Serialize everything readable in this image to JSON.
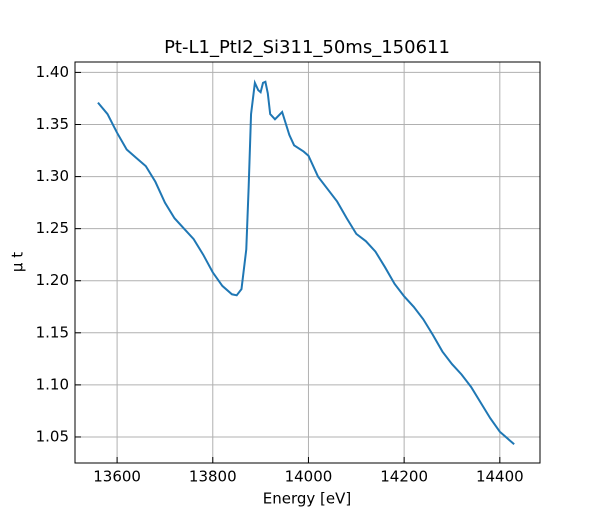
{
  "chart_data": {
    "type": "line",
    "title": "Pt-L1_PtI2_Si311_50ms_150611",
    "xlabel": "Energy [eV]",
    "ylabel": "μ t",
    "series": [
      {
        "color": "#1f77b4",
        "x": [
          13560,
          13580,
          13600,
          13620,
          13640,
          13660,
          13680,
          13700,
          13720,
          13740,
          13760,
          13780,
          13800,
          13820,
          13840,
          13850,
          13860,
          13870,
          13875,
          13880,
          13888,
          13895,
          13900,
          13905,
          13910,
          13915,
          13920,
          13930,
          13945,
          13960,
          13970,
          13990,
          14000,
          14020,
          14040,
          14060,
          14080,
          14100,
          14120,
          14140,
          14160,
          14180,
          14200,
          14220,
          14240,
          14260,
          14280,
          14300,
          14320,
          14340,
          14360,
          14380,
          14400,
          14420,
          14430
        ],
        "values": [
          1.371,
          1.36,
          1.342,
          1.326,
          1.318,
          1.31,
          1.295,
          1.275,
          1.26,
          1.25,
          1.24,
          1.225,
          1.208,
          1.195,
          1.187,
          1.186,
          1.192,
          1.23,
          1.29,
          1.36,
          1.39,
          1.383,
          1.381,
          1.39,
          1.391,
          1.38,
          1.36,
          1.355,
          1.362,
          1.34,
          1.33,
          1.324,
          1.32,
          1.3,
          1.288,
          1.276,
          1.26,
          1.245,
          1.238,
          1.228,
          1.213,
          1.197,
          1.185,
          1.175,
          1.163,
          1.148,
          1.132,
          1.12,
          1.11,
          1.098,
          1.083,
          1.068,
          1.055,
          1.047,
          1.043
        ]
      }
    ],
    "xlim": [
      13512,
      14484
    ],
    "xticks": [
      13600,
      13800,
      14000,
      14200,
      14400
    ],
    "ylim": [
      1.025,
      1.41
    ],
    "yticks": [
      1.05,
      {
        "value": 1.1,
        "label": "1.10"
      },
      1.15,
      {
        "value": 1.2,
        "label": "1.20"
      },
      1.25,
      {
        "value": 1.3,
        "label": "1.30"
      },
      1.35,
      {
        "value": 1.4,
        "label": "1.40"
      }
    ],
    "grid": true
  }
}
